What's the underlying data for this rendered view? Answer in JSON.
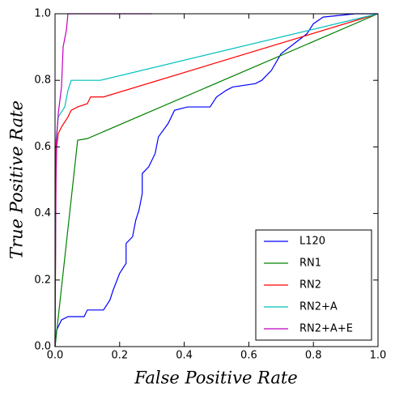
{
  "chart_data": {
    "type": "line",
    "xlabel": "False Positive Rate",
    "ylabel": "True Positive Rate",
    "xlim": [
      0,
      1
    ],
    "ylim": [
      0,
      1
    ],
    "xticks": [
      {
        "value": 0,
        "label": "0.0"
      },
      0.2,
      0.4,
      0.6,
      0.8,
      {
        "value": 1,
        "label": "1.0"
      }
    ],
    "yticks": [
      {
        "value": 0,
        "label": "0.0"
      },
      0.2,
      0.4,
      0.6,
      0.8,
      {
        "value": 1,
        "label": "1.0"
      }
    ],
    "legend": "lower right",
    "series": [
      {
        "name": "L120",
        "color": "#0000ff",
        "x": [
          0,
          0.005,
          0.01,
          0.02,
          0.04,
          0.09,
          0.1,
          0.15,
          0.17,
          0.18,
          0.2,
          0.22,
          0.22,
          0.24,
          0.25,
          0.26,
          0.27,
          0.27,
          0.29,
          0.31,
          0.32,
          0.35,
          0.37,
          0.41,
          0.48,
          0.5,
          0.53,
          0.55,
          0.62,
          0.64,
          0.67,
          0.7,
          0.74,
          0.78,
          0.8,
          0.83,
          0.93,
          1
        ],
        "values": [
          0,
          0.05,
          0.06,
          0.08,
          0.09,
          0.09,
          0.11,
          0.11,
          0.14,
          0.17,
          0.22,
          0.25,
          0.31,
          0.33,
          0.38,
          0.41,
          0.46,
          0.52,
          0.54,
          0.58,
          0.63,
          0.67,
          0.71,
          0.72,
          0.72,
          0.75,
          0.77,
          0.78,
          0.79,
          0.8,
          0.83,
          0.88,
          0.91,
          0.94,
          0.97,
          0.99,
          1,
          1
        ]
      },
      {
        "name": "RN1",
        "color": "#008000",
        "x": [
          0,
          0.07,
          0.1,
          1
        ],
        "values": [
          0,
          0.62,
          0.625,
          1
        ]
      },
      {
        "name": "RN2",
        "color": "#ff0000",
        "x": [
          0,
          0.003,
          0.005,
          0.01,
          0.02,
          0.04,
          0.05,
          0.07,
          0.1,
          0.11,
          0.15,
          1
        ],
        "values": [
          0,
          0.5,
          0.6,
          0.64,
          0.66,
          0.69,
          0.71,
          0.72,
          0.73,
          0.75,
          0.75,
          1
        ]
      },
      {
        "name": "RN2+A",
        "color": "#00bfbf",
        "x": [
          0,
          0.003,
          0.01,
          0.03,
          0.04,
          0.05,
          0.14,
          1
        ],
        "values": [
          0,
          0.62,
          0.69,
          0.72,
          0.77,
          0.8,
          0.8,
          1
        ]
      },
      {
        "name": "RN2+A+E",
        "color": "#bf00bf",
        "x": [
          0,
          0.003,
          0.01,
          0.02,
          0.025,
          0.035,
          0.04,
          0.3
        ],
        "values": [
          0,
          0.6,
          0.7,
          0.78,
          0.9,
          0.95,
          1,
          1
        ]
      }
    ]
  }
}
